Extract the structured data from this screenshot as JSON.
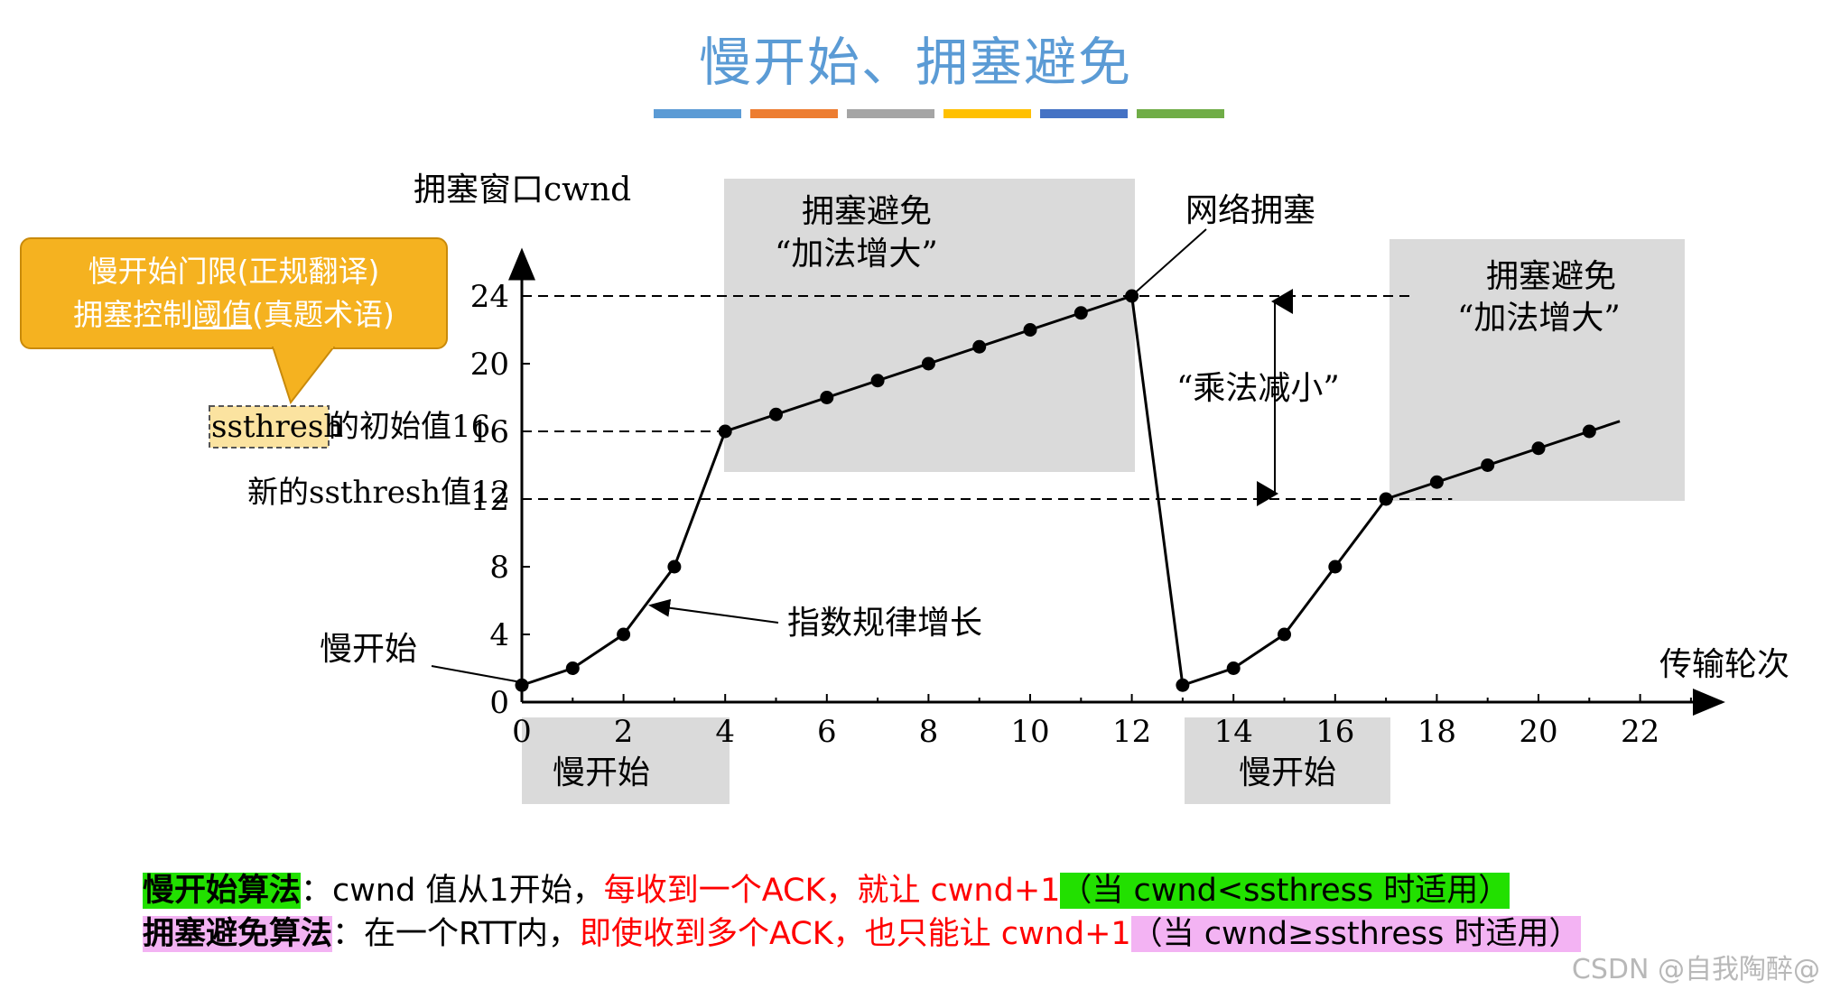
{
  "title": "慢开始、拥塞避免",
  "title_bar_colors": [
    "#5b9bd5",
    "#ed7d31",
    "#a5a5a5",
    "#ffc000",
    "#4472c4",
    "#70ad47"
  ],
  "callout": {
    "line1": "慢开始门限(正规翻译)",
    "line2_pre": "拥塞控制",
    "line2_ul": "阈值",
    "line2_post": "(真题术语)"
  },
  "legend": {
    "line1": {
      "label": "慢开始算法",
      "colon": "：",
      "text_black": "cwnd 值从1开始，",
      "text_red": "每收到一个ACK，就让 cwnd+1",
      "note": "（当 cwnd<ssthress 时适用）"
    },
    "line2": {
      "label": "拥塞避免算法",
      "colon": "：",
      "text_black": "在一个RTT内，",
      "text_red": "即使收到多个ACK，也只能让 cwnd+1",
      "note": "（当 cwnd≥ssthress 时适用）"
    }
  },
  "watermark": "CSDN @自我陶醉@",
  "chart_data": {
    "type": "line",
    "ylabel": "拥塞窗口cwnd",
    "xlabel": "传输轮次",
    "x_ticks": [
      0,
      2,
      4,
      6,
      8,
      10,
      12,
      14,
      16,
      18,
      20,
      22
    ],
    "y_ticks": [
      0,
      4,
      8,
      12,
      16,
      20,
      24
    ],
    "xlim": [
      0,
      23
    ],
    "ylim": [
      0,
      26
    ],
    "series": [
      {
        "points": [
          [
            0,
            1
          ],
          [
            1,
            2
          ],
          [
            2,
            4
          ],
          [
            3,
            8
          ],
          [
            4,
            16
          ],
          [
            5,
            17
          ],
          [
            6,
            18
          ],
          [
            7,
            19
          ],
          [
            8,
            20
          ],
          [
            9,
            21
          ],
          [
            10,
            22
          ],
          [
            11,
            23
          ],
          [
            12,
            24
          ],
          [
            13,
            1
          ],
          [
            14,
            2
          ],
          [
            15,
            4
          ],
          [
            16,
            8
          ],
          [
            17,
            12
          ],
          [
            18,
            13
          ],
          [
            19,
            14
          ],
          [
            20,
            15
          ],
          [
            21,
            16
          ]
        ],
        "extend_to": [
          21.6,
          16.6
        ]
      }
    ],
    "dashed_levels": [
      24,
      16,
      12
    ],
    "labels": {
      "ssthresh_initial_key": "ssthresh",
      "ssthresh_initial_rest": "的初始值16",
      "ssthresh_new": "新的ssthresh值12",
      "slow_start_point": "慢开始",
      "exponential": "指数规律增长",
      "congestion": "网络拥塞",
      "mult_decrease": "“乘法减小”",
      "ca_region_title": "拥塞避免",
      "ca_region_sub": "“加法增大”",
      "ss_region": "慢开始"
    }
  }
}
